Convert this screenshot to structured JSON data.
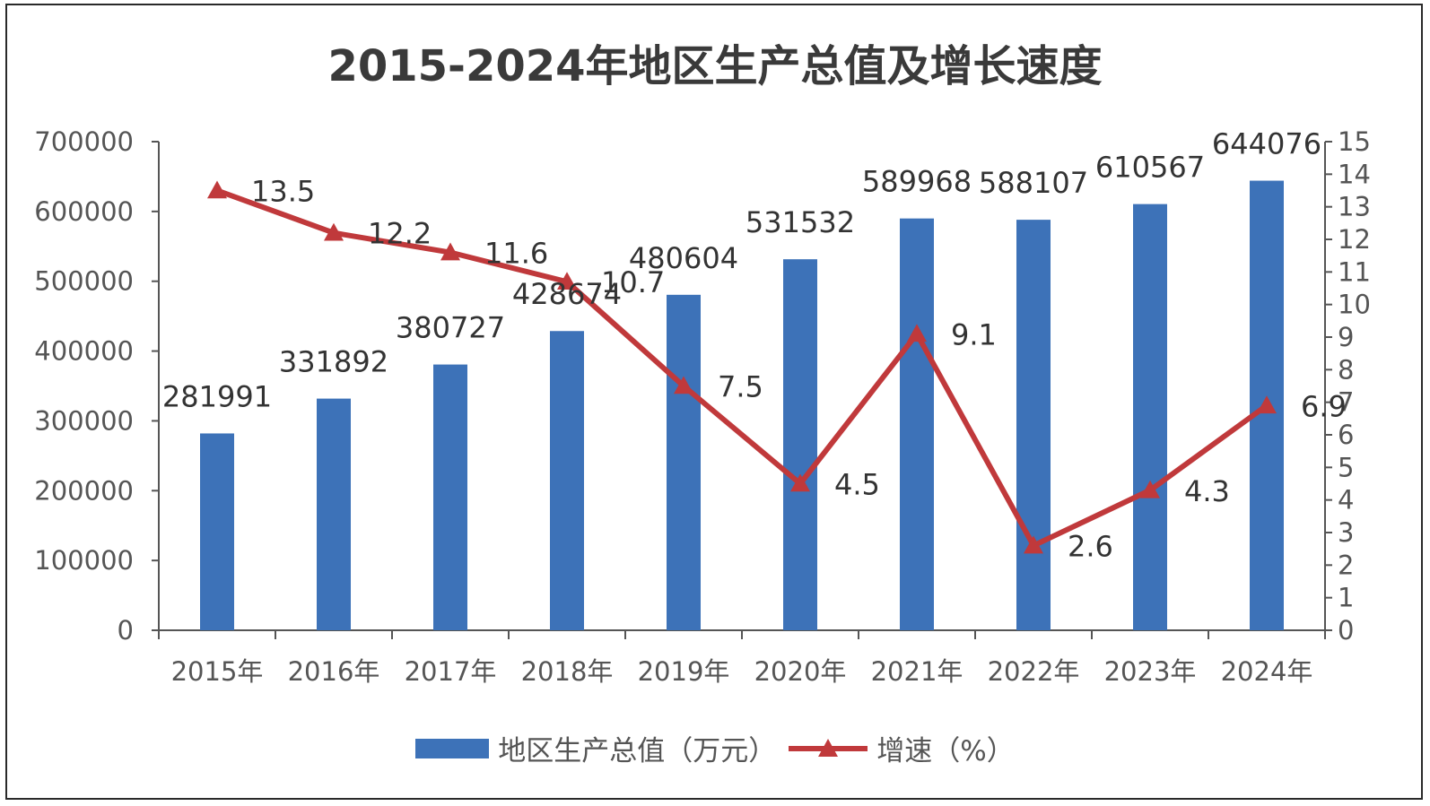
{
  "chart_data": {
    "type": "bar",
    "title": "2015-2024年地区生产总值及增长速度",
    "categories": [
      "2015年",
      "2016年",
      "2017年",
      "2018年",
      "2019年",
      "2020年",
      "2021年",
      "2022年",
      "2023年",
      "2024年"
    ],
    "series": [
      {
        "name": "地区生产总值（万元）",
        "type": "bar",
        "axis": "left",
        "color": "#3d72b8",
        "values": [
          281991,
          331892,
          380727,
          428674,
          480604,
          531532,
          589968,
          588107,
          610567,
          644076
        ]
      },
      {
        "name": "增速（%）",
        "type": "line",
        "axis": "right",
        "marker": "triangle",
        "color": "#c0393b",
        "values": [
          13.5,
          12.2,
          11.6,
          10.7,
          7.5,
          4.5,
          9.1,
          2.6,
          4.3,
          6.9
        ]
      }
    ],
    "y_left": {
      "ylim": [
        0,
        700000
      ],
      "ticks": [
        "0",
        "100000",
        "200000",
        "300000",
        "400000",
        "500000",
        "600000",
        "700000"
      ]
    },
    "y_right": {
      "ylim": [
        0,
        15
      ],
      "ticks": [
        "0",
        "1",
        "2",
        "3",
        "4",
        "5",
        "6",
        "7",
        "8",
        "9",
        "10",
        "11",
        "12",
        "13",
        "14",
        "15"
      ]
    },
    "legend_position": "bottom",
    "grid": false
  }
}
